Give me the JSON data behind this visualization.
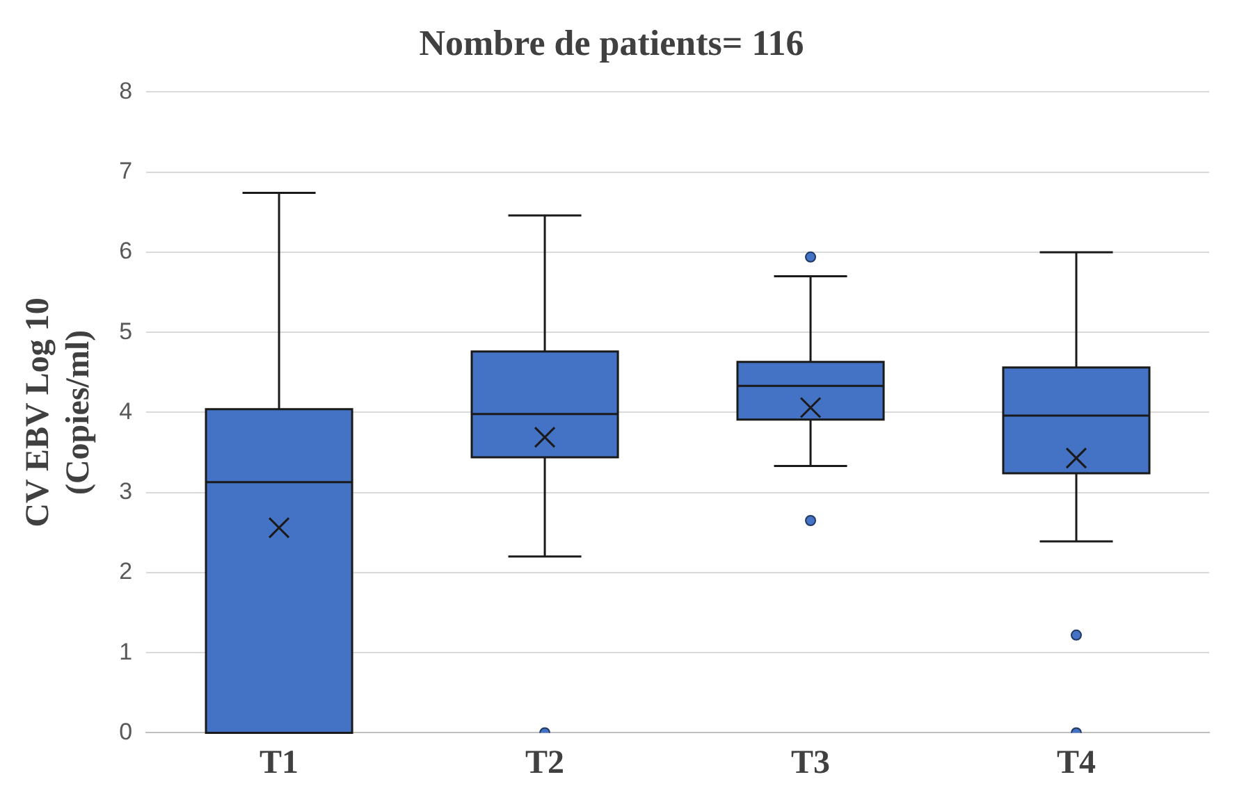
{
  "chart_data": {
    "type": "box",
    "title": "Nombre de patients= 116",
    "ylabel": "CV EBV Log 10\n(Copies/ml)",
    "categories": [
      "T1",
      "T2",
      "T3",
      "T4"
    ],
    "series": [
      {
        "color": "#4472c4",
        "boxes": [
          {
            "low": 0,
            "q1": 0,
            "median": 3.13,
            "q3": 4.04,
            "high": 6.74,
            "mean": 2.56
          },
          {
            "low": 2.2,
            "q1": 3.44,
            "median": 3.98,
            "q3": 4.76,
            "high": 6.46,
            "mean": 3.69,
            "outliers": [
              0
            ]
          },
          {
            "low": 3.33,
            "q1": 3.91,
            "median": 4.33,
            "q3": 4.63,
            "high": 5.7,
            "mean": 4.06,
            "outliers": [
              5.94,
              2.65
            ]
          },
          {
            "low": 2.39,
            "q1": 3.24,
            "median": 3.96,
            "q3": 4.56,
            "high": 6.0,
            "mean": 3.43,
            "outliers": [
              1.22,
              0
            ]
          }
        ]
      }
    ],
    "ylim": [
      0,
      8
    ],
    "yticks": [
      0,
      1,
      2,
      3,
      4,
      5,
      6,
      7,
      8
    ],
    "grid": "y",
    "legend": false,
    "marker": "cross"
  }
}
